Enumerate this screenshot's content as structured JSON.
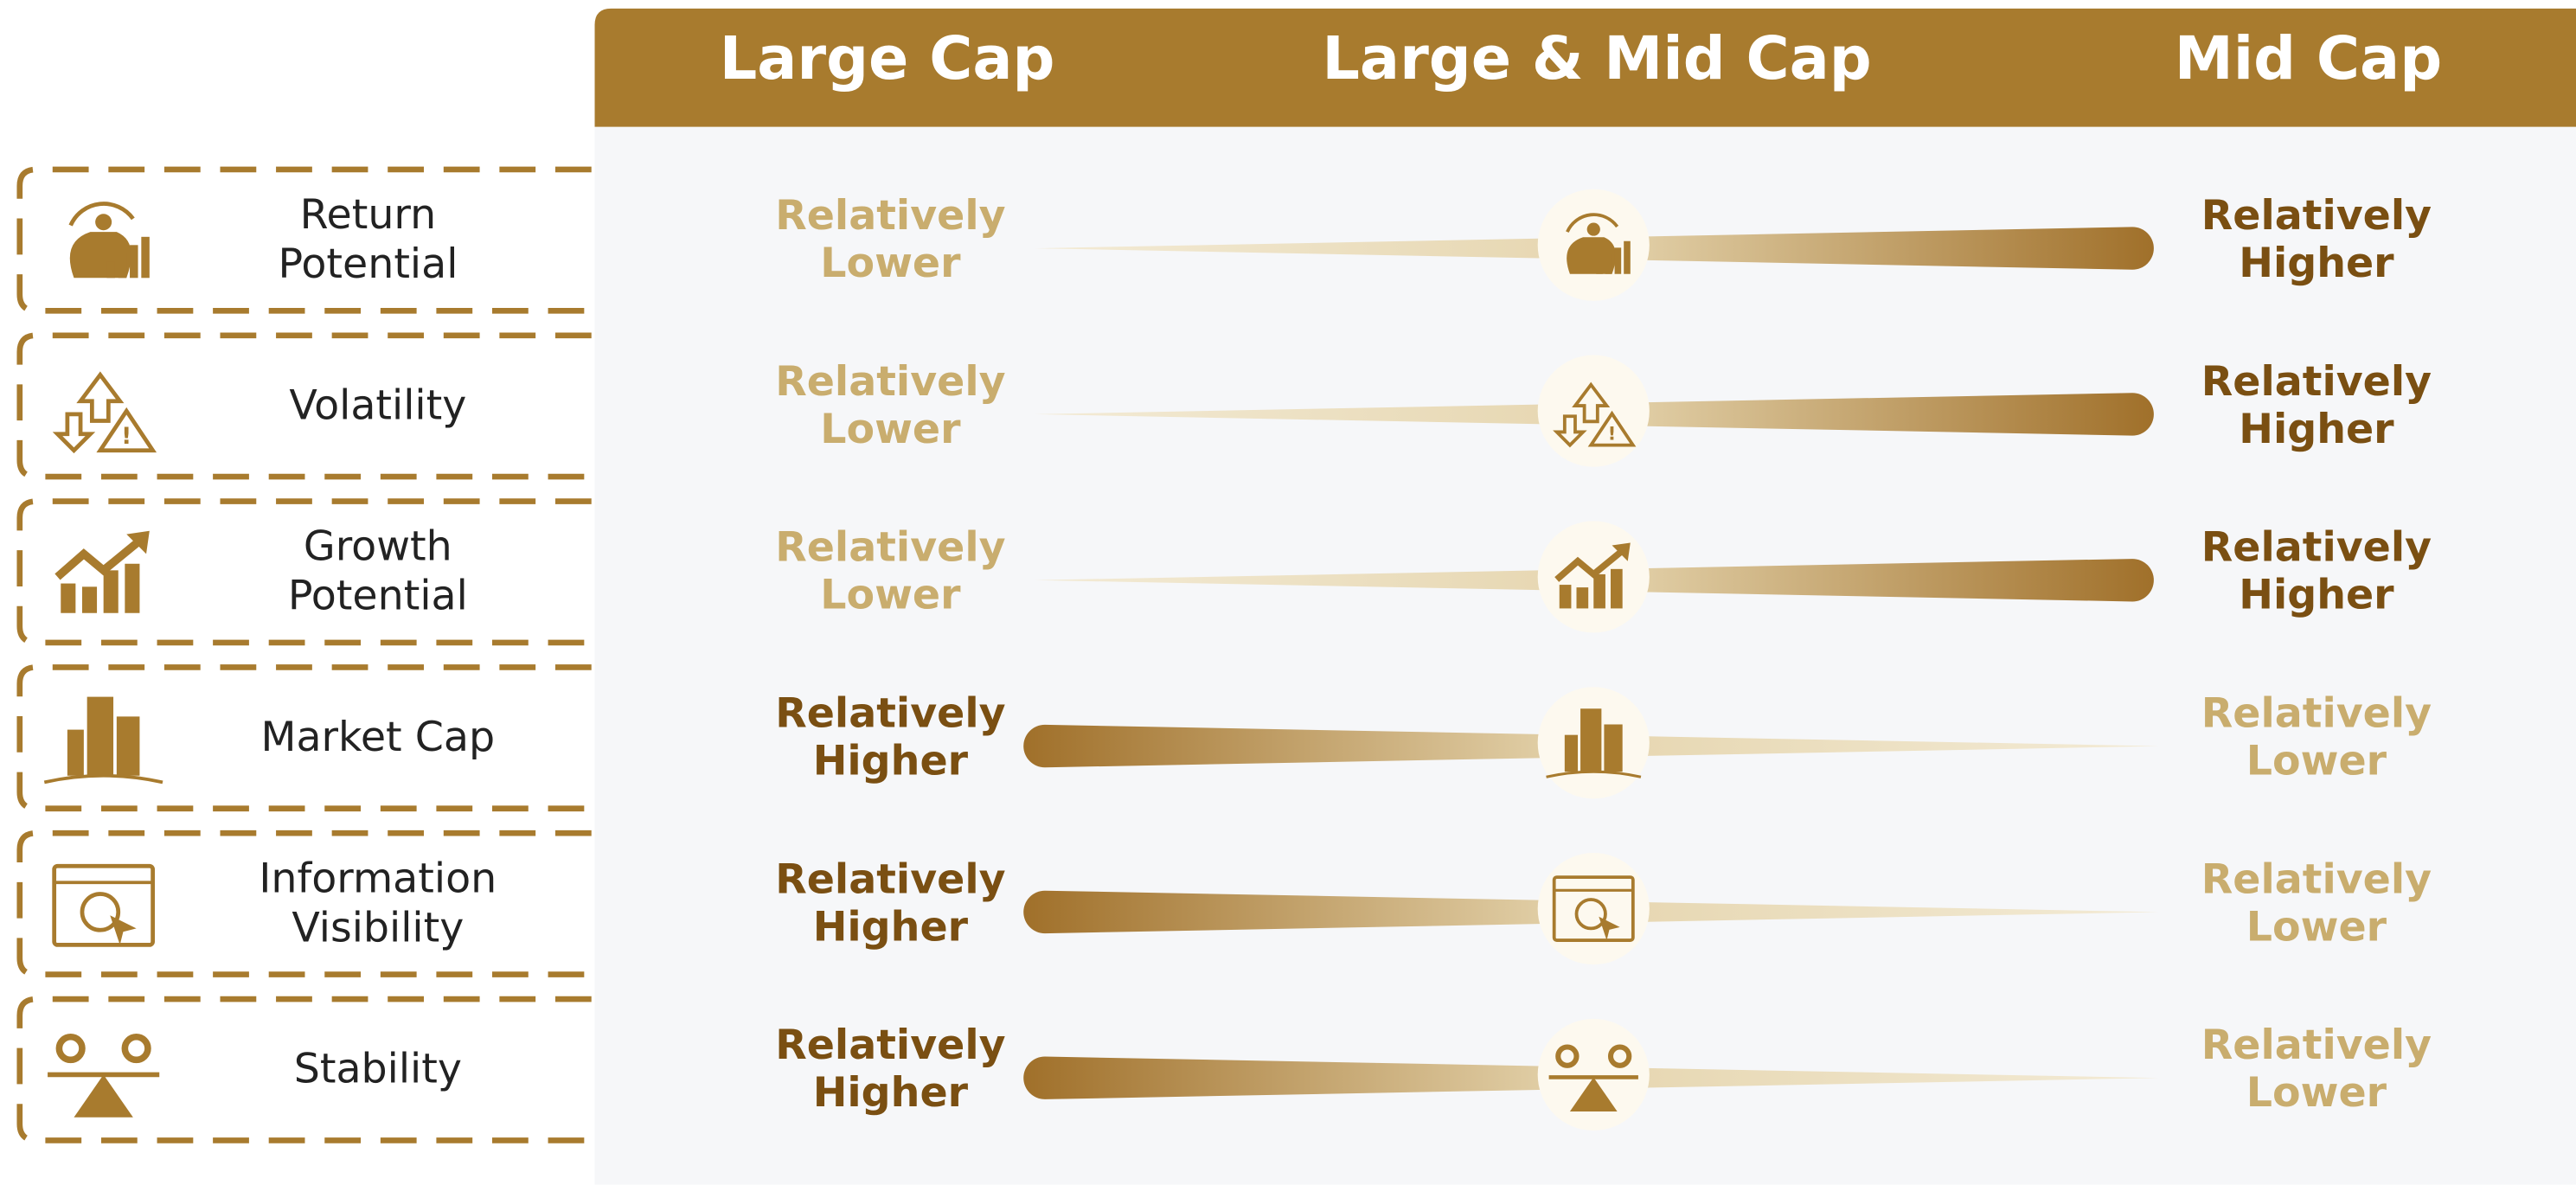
{
  "header": {
    "columns": [
      "Large Cap",
      "Large & Mid Cap",
      "Mid Cap"
    ]
  },
  "rows": [
    {
      "label": [
        "Return",
        "Potential"
      ],
      "left": [
        "Relatively",
        "Lower"
      ],
      "right": [
        "Relatively",
        "Higher"
      ]
    },
    {
      "label": [
        "Volatility"
      ],
      "left": [
        "Relatively",
        "Lower"
      ],
      "right": [
        "Relatively",
        "Higher"
      ]
    },
    {
      "label": [
        "Growth",
        "Potential"
      ],
      "left": [
        "Relatively",
        "Lower"
      ],
      "right": [
        "Relatively",
        "Higher"
      ]
    },
    {
      "label": [
        "Market Cap"
      ],
      "left": [
        "Relatively",
        "Higher"
      ],
      "right": [
        "Relatively",
        "Lower"
      ]
    },
    {
      "label": [
        "Information",
        "Visibility"
      ],
      "left": [
        "Relatively",
        "Higher"
      ],
      "right": [
        "Relatively",
        "Lower"
      ]
    },
    {
      "label": [
        "Stability"
      ],
      "left": [
        "Relatively",
        "Higher"
      ],
      "right": [
        "Relatively",
        "Lower"
      ]
    }
  ]
}
